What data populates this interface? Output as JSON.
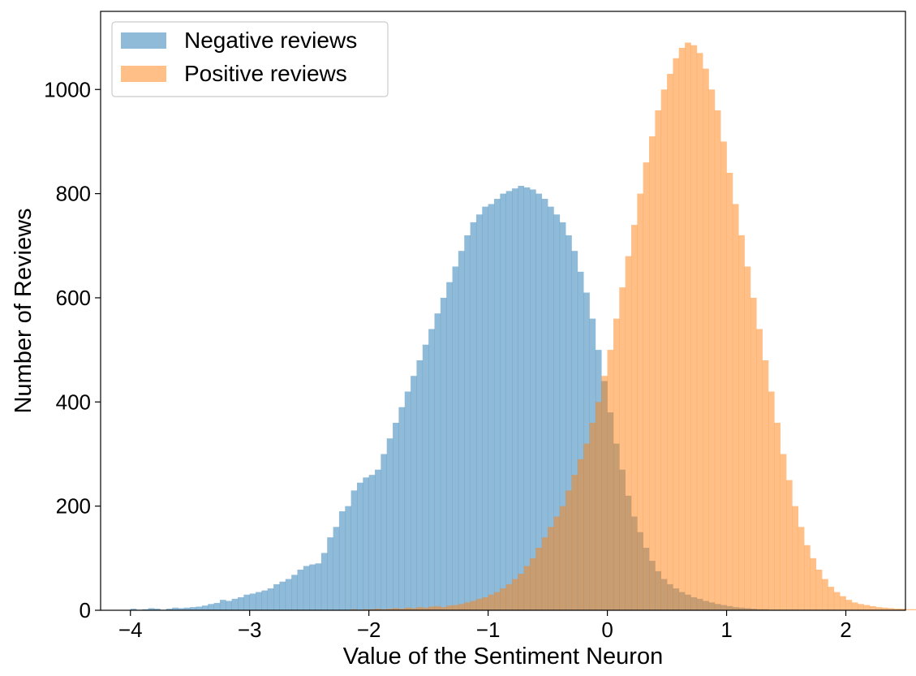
{
  "chart_data": {
    "type": "histogram",
    "xlabel": "Value of the Sentiment Neuron",
    "ylabel": "Number of Reviews",
    "xlim": [
      -4.25,
      2.5
    ],
    "ylim": [
      0,
      1150
    ],
    "xticks": [
      -4,
      -3,
      -2,
      -1,
      0,
      1,
      2
    ],
    "yticks": [
      0,
      200,
      400,
      600,
      800,
      1000
    ],
    "tick_label_format": "minus-sign",
    "bin_width": 0.05,
    "legend_position": "top-left",
    "legend": [
      "Negative reviews",
      "Positive reviews"
    ],
    "series": [
      {
        "name": "Negative reviews",
        "color": "#1f77b4",
        "opacity": 0.5,
        "bins_start": -4.0,
        "values": [
          3,
          1,
          2,
          4,
          3,
          1,
          3,
          5,
          4,
          5,
          6,
          7,
          9,
          12,
          14,
          20,
          18,
          22,
          25,
          30,
          32,
          35,
          38,
          42,
          50,
          55,
          60,
          68,
          78,
          85,
          88,
          90,
          110,
          140,
          160,
          190,
          200,
          230,
          245,
          255,
          260,
          270,
          300,
          330,
          360,
          390,
          420,
          450,
          480,
          510,
          540,
          570,
          600,
          630,
          660,
          690,
          720,
          745,
          760,
          775,
          780,
          790,
          800,
          805,
          810,
          815,
          812,
          808,
          800,
          790,
          775,
          760,
          745,
          720,
          690,
          650,
          610,
          560,
          500,
          440,
          380,
          320,
          270,
          220,
          180,
          150,
          120,
          95,
          75,
          60,
          50,
          42,
          35,
          30,
          25,
          22,
          18,
          15,
          12,
          10,
          8,
          6,
          5,
          4,
          3,
          2,
          2,
          1,
          1,
          1,
          1,
          1,
          0,
          0,
          0,
          0,
          0,
          0,
          0,
          0,
          0,
          0,
          0,
          0,
          0
        ]
      },
      {
        "name": "Positive reviews",
        "color": "#ff7f0e",
        "opacity": 0.5,
        "bins_start": -2.15,
        "values": [
          2,
          1,
          2,
          2,
          3,
          2,
          3,
          4,
          3,
          5,
          4,
          6,
          5,
          7,
          8,
          6,
          9,
          10,
          12,
          15,
          18,
          22,
          25,
          30,
          35,
          42,
          50,
          60,
          70,
          85,
          100,
          120,
          140,
          160,
          180,
          200,
          230,
          260,
          290,
          320,
          360,
          400,
          450,
          500,
          560,
          620,
          680,
          740,
          800,
          860,
          910,
          960,
          1000,
          1030,
          1060,
          1080,
          1090,
          1085,
          1070,
          1040,
          1000,
          960,
          900,
          840,
          780,
          720,
          660,
          600,
          540,
          480,
          420,
          360,
          300,
          250,
          200,
          160,
          125,
          100,
          78,
          60,
          45,
          35,
          27,
          20,
          15,
          12,
          10,
          8,
          6,
          5,
          4,
          3,
          3,
          2,
          2,
          1,
          1,
          1,
          1,
          1,
          1,
          1,
          1,
          0,
          0,
          0,
          0,
          0,
          0,
          0,
          0,
          0,
          0,
          0,
          0,
          0,
          0,
          0,
          0,
          0,
          0,
          0,
          0,
          0,
          0,
          0,
          0,
          0,
          0,
          0,
          0,
          0,
          0,
          0,
          0,
          1
        ]
      }
    ]
  }
}
